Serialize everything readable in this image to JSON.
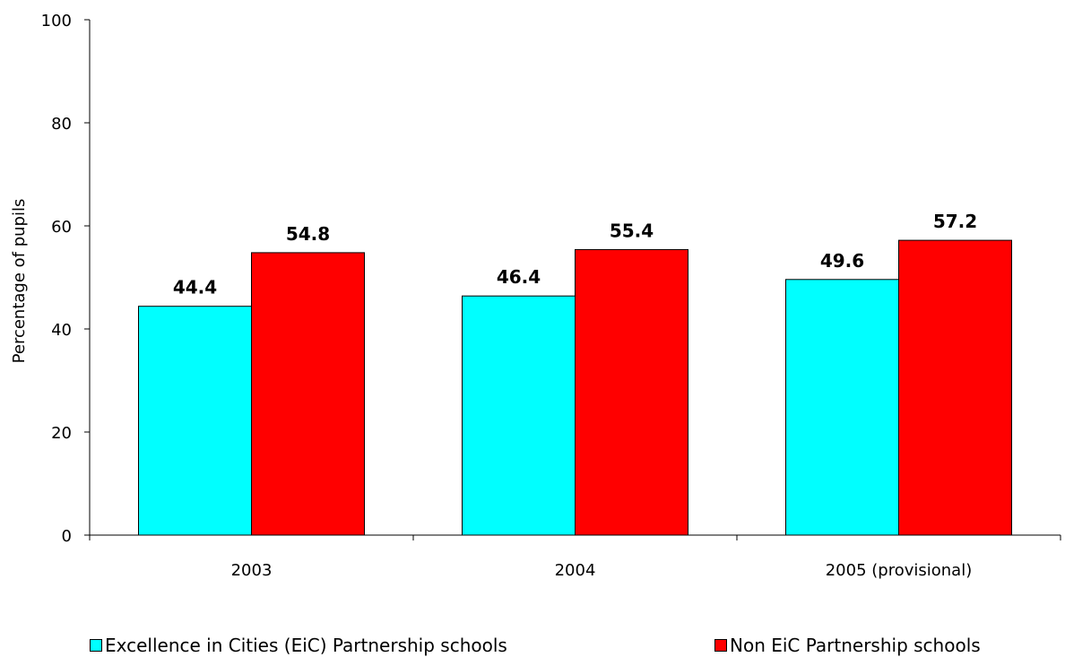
{
  "chart_data": {
    "type": "bar",
    "categories": [
      "2003",
      "2004",
      "2005 (provisional)"
    ],
    "series": [
      {
        "name": "Excellence in Cities (EiC) Partnership schools",
        "values": [
          44.4,
          46.4,
          49.6
        ],
        "color": "#00FFFF",
        "labels": [
          "44.4",
          "46.4",
          "49.6"
        ]
      },
      {
        "name": "Non EiC Partnership schools",
        "values": [
          54.8,
          55.4,
          57.2
        ],
        "color": "#FF0000",
        "labels": [
          "54.8",
          "55.4",
          "57.2"
        ]
      }
    ],
    "title": "",
    "xlabel": "",
    "ylabel": "Percentage of pupils",
    "ylim": [
      0,
      100
    ],
    "yticks": [
      "0",
      "20",
      "40",
      "60",
      "80",
      "100"
    ],
    "grid": false,
    "legend_position": "bottom"
  }
}
